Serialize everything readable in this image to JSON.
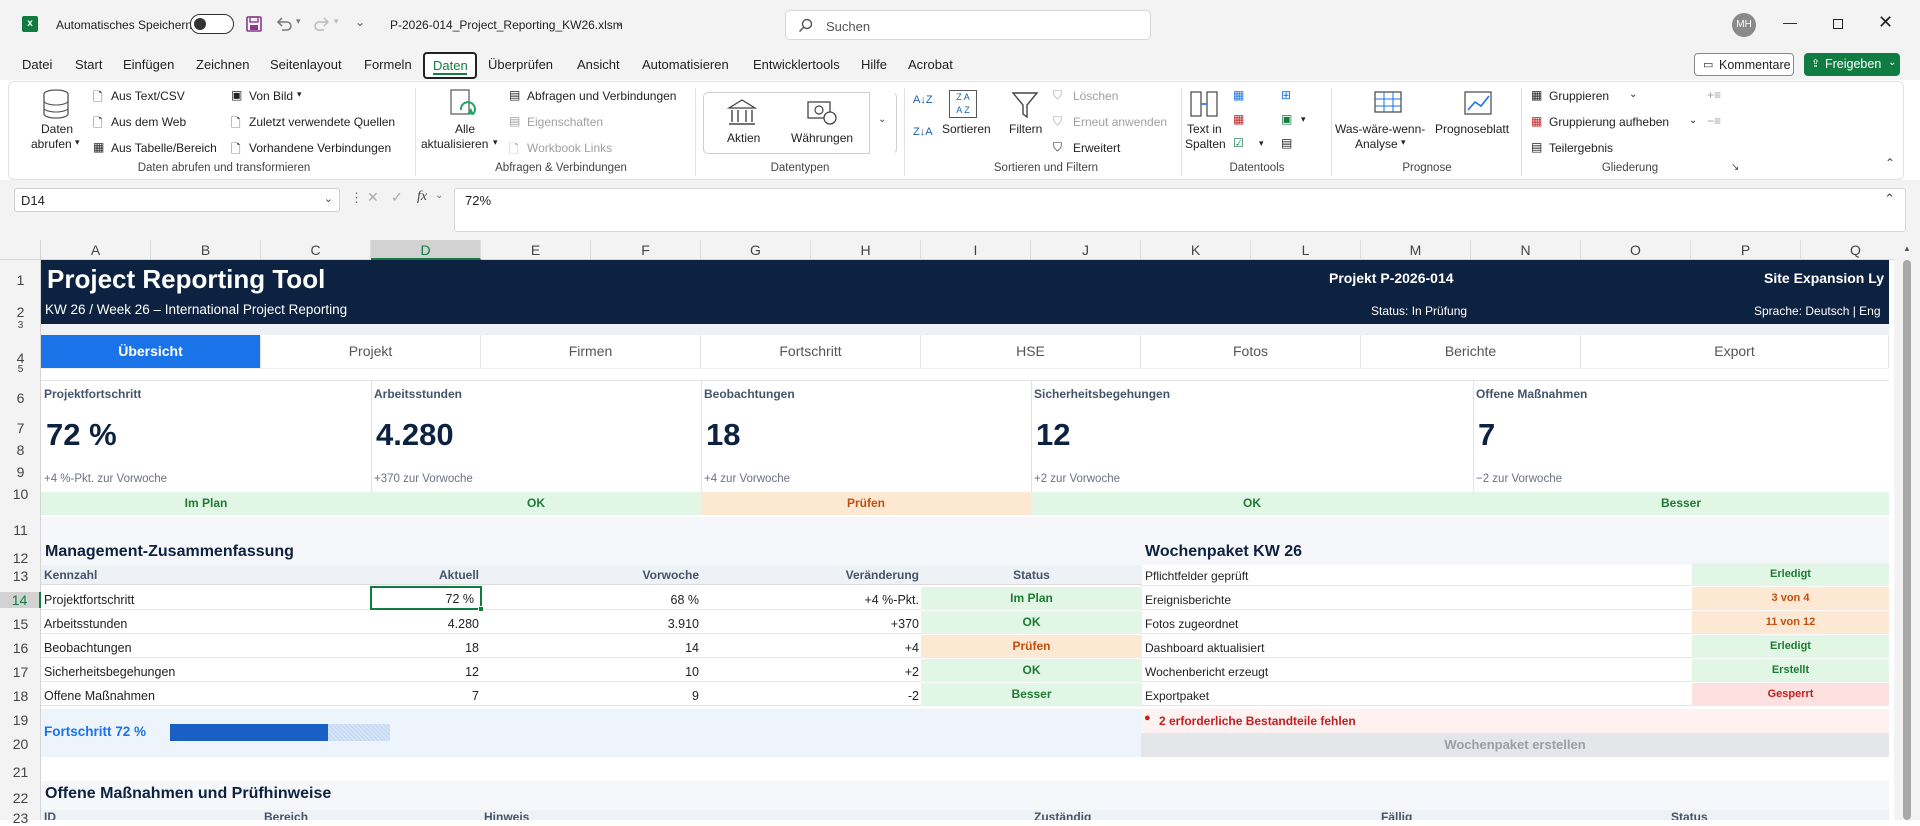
{
  "titlebar": {
    "autosave_label": "Automatisches Speichern",
    "filename": "P-2026-014_Project_Reporting_KW26.xlsm",
    "search_placeholder": "Suchen",
    "avatar_initials": "MH"
  },
  "menu": {
    "items": [
      "Datei",
      "Start",
      "Einfügen",
      "Zeichnen",
      "Seitenlayout",
      "Formeln",
      "Daten",
      "Überprüfen",
      "Ansicht",
      "Automatisieren",
      "Entwicklertools",
      "Hilfe",
      "Acrobat"
    ],
    "active": "Daten",
    "comments_label": "Kommentare",
    "share_label": "Freigeben"
  },
  "ribbon": {
    "get_data": "Daten",
    "get_data2": "abrufen",
    "from_text": "Aus Text/CSV",
    "from_web": "Aus dem Web",
    "from_table": "Aus Tabelle/Bereich",
    "from_picture": "Von Bild",
    "recent_sources": "Zuletzt verwendete Quellen",
    "existing_conn": "Vorhandene Verbindungen",
    "group_get": "Daten abrufen und transformieren",
    "refresh_all": "Alle",
    "refresh_all2": "aktualisieren",
    "queries_conn": "Abfragen und Verbindungen",
    "properties": "Eigenschaften",
    "workbook_links": "Workbook Links",
    "group_queries": "Abfragen & Verbindungen",
    "stocks": "Aktien",
    "currencies": "Währungen",
    "group_datatypes": "Datentypen",
    "sort": "Sortieren",
    "filter": "Filtern",
    "clear": "Löschen",
    "reapply": "Erneut anwenden",
    "advanced": "Erweitert",
    "group_sort": "Sortieren und Filtern",
    "text_to_cols": "Text in",
    "text_to_cols2": "Spalten",
    "group_datatools": "Datentools",
    "whatif": "Was-wäre-wenn-",
    "whatif2": "Analyse",
    "forecast": "Prognoseblatt",
    "group_forecast": "Prognose",
    "group": "Gruppieren",
    "ungroup": "Gruppierung aufheben",
    "subtotal": "Teilergebnis",
    "group_outline": "Gliederung"
  },
  "formula_bar": {
    "name_box": "D14",
    "fx": "fx",
    "value": "72%"
  },
  "columns": [
    "A",
    "B",
    "C",
    "D",
    "E",
    "F",
    "G",
    "H",
    "I",
    "J",
    "K",
    "L",
    "M",
    "N",
    "O",
    "P",
    "Q"
  ],
  "rows": [
    "1",
    "2",
    "3",
    "4",
    "5",
    "6",
    "7",
    "8",
    "9",
    "10",
    "11",
    "12",
    "13",
    "14",
    "15",
    "16",
    "17",
    "18",
    "19",
    "20",
    "21",
    "22",
    "23"
  ],
  "sheet": {
    "title": "Project Reporting Tool",
    "subtitle": "KW 26 / Week 26 – International Project Reporting",
    "project": "Projekt P-2026-014",
    "site": "Site Expansion Ly",
    "status": "Status: In Prüfung",
    "language": "Sprache: Deutsch  |  Eng",
    "tabs": [
      "Übersicht",
      "Projekt",
      "Firmen",
      "Fortschritt",
      "HSE",
      "Fotos",
      "Berichte",
      "Export"
    ],
    "kpis": [
      {
        "label": "Projektfortschritt",
        "value": "72 %",
        "sub": "+4 %-Pkt. zur Vorwoche",
        "status": "Im Plan"
      },
      {
        "label": "Arbeitsstunden",
        "value": "4.280",
        "sub": "+370 zur Vorwoche",
        "status": "OK"
      },
      {
        "label": "Beobachtungen",
        "value": "18",
        "sub": "+4 zur Vorwoche",
        "status": "Prüfen"
      },
      {
        "label": "Sicherheitsbegehungen",
        "value": "12",
        "sub": "+2 zur Vorwoche",
        "status": "OK"
      },
      {
        "label": "Offene Maßnahmen",
        "value": "7",
        "sub": "−2 zur Vorwoche",
        "status": "Besser"
      }
    ],
    "mgmt_title": "Management-Zusammenfassung",
    "mgmt_headers": [
      "Kennzahl",
      "Aktuell",
      "Vorwoche",
      "Veränderung",
      "Status"
    ],
    "mgmt_rows": [
      {
        "name": "Projektfortschritt",
        "cur": "72 %",
        "prev": "68 %",
        "chg": "+4  %-Pkt.",
        "status": "Im Plan"
      },
      {
        "name": "Arbeitsstunden",
        "cur": "4.280",
        "prev": "3.910",
        "chg": "+370",
        "status": "OK"
      },
      {
        "name": "Beobachtungen",
        "cur": "18",
        "prev": "14",
        "chg": "+4",
        "status": "Prüfen"
      },
      {
        "name": "Sicherheitsbegehungen",
        "cur": "12",
        "prev": "10",
        "chg": "+2",
        "status": "OK"
      },
      {
        "name": "Offene Maßnahmen",
        "cur": "7",
        "prev": "9",
        "chg": "-2",
        "status": "Besser"
      }
    ],
    "progress_label": "Fortschritt  72 %",
    "progress_value": 0.72,
    "wp_title": "Wochenpaket KW 26",
    "wp_rows": [
      {
        "name": "Pflichtfelder geprüft",
        "status": "Erledigt"
      },
      {
        "name": "Ereignisberichte",
        "status": "3 von 4"
      },
      {
        "name": "Fotos zugeordnet",
        "status": "11 von 12"
      },
      {
        "name": "Dashboard aktualisiert",
        "status": "Erledigt"
      },
      {
        "name": "Wochenbericht erzeugt",
        "status": "Erstellt"
      },
      {
        "name": "Exportpaket",
        "status": "Gesperrt"
      }
    ],
    "wp_missing": "2 erforderliche Bestandteile fehlen",
    "wp_button": "Wochenpaket erstellen",
    "actions_title": "Offene Maßnahmen und Prüfhinweise",
    "actions_headers": [
      "ID",
      "Bereich",
      "Hinweis",
      "Zuständig",
      "Fällig",
      "Status"
    ]
  },
  "colors": {
    "navy": "#0d2240",
    "accent": "#1a73e8",
    "excel_green": "#107c41"
  }
}
